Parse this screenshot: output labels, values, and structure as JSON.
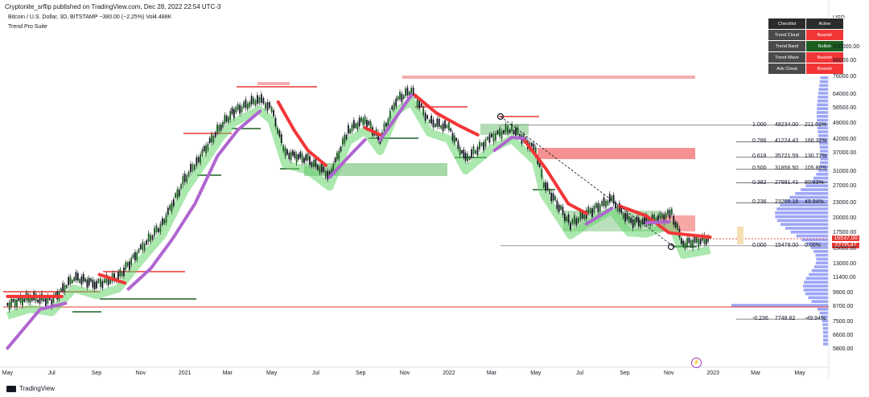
{
  "header": {
    "published": "Cryptonite_srflip published on TradingView.com, Dec 28, 2022 22:54 UTC-3",
    "symbol_line": "Bitcoin / U.S. Dollar, 3D, BITSTAMP  −380.00 (−2.25%)  Vol4.488K",
    "indicator": "Trend Pro Suite"
  },
  "footer": {
    "brand": "TradingView"
  },
  "axis": {
    "currency": "USD"
  },
  "last_price": {
    "value": "16537.00",
    "countdown": "22:05:47"
  },
  "event_marker": "⚡",
  "checklist": {
    "header": [
      "Checklist",
      "Active"
    ],
    "rows": [
      {
        "name": "Trend Cloud",
        "status": "Bearish",
        "color": "#f23636"
      },
      {
        "name": "Trend Band",
        "status": "Bullish",
        "color": "#1b5e20"
      },
      {
        "name": "Trend Wave",
        "status": "Bearish",
        "color": "#f23636"
      },
      {
        "name": "Adx Cloud",
        "status": "Bearish",
        "color": "#f23636"
      }
    ]
  },
  "fib_levels": [
    {
      "ratio": "1.000",
      "price": "48234.00",
      "pct": "211.61%",
      "value": 48234
    },
    {
      "ratio": "0.786",
      "price": "41224.43",
      "pct": "166.32%",
      "value": 41224
    },
    {
      "ratio": "0.618",
      "price": "35721.59",
      "pct": "130.77%",
      "value": 35722
    },
    {
      "ratio": "0.500",
      "price": "31856.50",
      "pct": "105.80%",
      "value": 31857
    },
    {
      "ratio": "0.382",
      "price": "27991.41",
      "pct": "80.83%",
      "value": 27991
    },
    {
      "ratio": "0.236",
      "price": "23209.18",
      "pct": "49.94%",
      "value": 23209
    },
    {
      "ratio": "0.000",
      "price": "15479.00",
      "pct": "0.00%",
      "value": 15479
    },
    {
      "ratio": "-0.236",
      "price": "7748.82",
      "pct": "-49.94%",
      "value": 7749
    }
  ],
  "chart_data": {
    "type": "line",
    "scale": "log",
    "ylim": [
      5000,
      140000
    ],
    "y_ticks": [
      100000,
      88000,
      76000,
      64000,
      56500,
      49000,
      42000,
      37000,
      31000,
      27000,
      23000,
      20000,
      17500,
      15000,
      13000,
      11400,
      9900,
      8700,
      7500,
      6600,
      5800
    ],
    "x_ticks": [
      "May",
      "Jul",
      "Sep",
      "Nov",
      "2021",
      "Mar",
      "May",
      "Jul",
      "Sep",
      "Nov",
      "2022",
      "Mar",
      "May",
      "Jul",
      "Sep",
      "Nov",
      "2023",
      "Mar",
      "May"
    ],
    "x_tick_dates": [
      "2020-05-01",
      "2020-07-01",
      "2020-09-01",
      "2020-11-01",
      "2021-01-01",
      "2021-03-01",
      "2021-05-01",
      "2021-07-01",
      "2021-09-01",
      "2021-11-01",
      "2022-01-01",
      "2022-03-01",
      "2022-05-01",
      "2022-07-01",
      "2022-09-01",
      "2022-11-01",
      "2023-01-01",
      "2023-03-01",
      "2023-05-01"
    ],
    "series": [
      {
        "x": [
          "2020-05-01",
          "2020-06-01",
          "2020-07-01",
          "2020-08-01",
          "2020-09-01",
          "2020-10-01",
          "2020-11-01",
          "2020-12-01",
          "2021-01-01",
          "2021-01-20",
          "2021-02-20",
          "2021-03-10",
          "2021-04-14",
          "2021-05-01",
          "2021-05-20",
          "2021-06-20",
          "2021-07-20",
          "2021-08-15",
          "2021-09-07",
          "2021-09-28",
          "2021-10-20",
          "2021-11-10",
          "2021-12-05",
          "2022-01-01",
          "2022-01-24",
          "2022-03-01",
          "2022-03-29",
          "2022-05-01",
          "2022-05-12",
          "2022-06-18",
          "2022-07-10",
          "2022-08-14",
          "2022-09-07",
          "2022-10-01",
          "2022-11-05",
          "2022-11-21",
          "2022-12-28"
        ],
        "y": [
          8900,
          9500,
          9200,
          11500,
          10800,
          11500,
          15000,
          19000,
          29000,
          35000,
          48000,
          55000,
          62000,
          56000,
          37000,
          35000,
          30000,
          46000,
          51000,
          42000,
          61000,
          67000,
          50000,
          47000,
          35000,
          43000,
          47000,
          38000,
          28000,
          19000,
          21000,
          24000,
          19500,
          19300,
          21000,
          15800,
          16537
        ]
      }
    ],
    "supertrend_red": [
      {
        "x": [
          "2020-05-01",
          "2020-07-15"
        ],
        "y": [
          9600,
          9600
        ]
      },
      {
        "x": [
          "2020-09-05",
          "2020-10-10"
        ],
        "y": [
          11800,
          10900
        ]
      },
      {
        "x": [
          "2021-05-10",
          "2021-06-01",
          "2021-06-20",
          "2021-07-15"
        ],
        "y": [
          60000,
          46000,
          38000,
          33000
        ]
      },
      {
        "x": [
          "2021-09-07",
          "2021-09-28"
        ],
        "y": [
          47000,
          44000
        ]
      },
      {
        "x": [
          "2021-11-15",
          "2021-12-15",
          "2022-01-15",
          "2022-02-10"
        ],
        "y": [
          64000,
          54000,
          48000,
          44000
        ]
      },
      {
        "x": [
          "2022-04-15",
          "2022-05-15",
          "2022-06-15",
          "2022-07-10"
        ],
        "y": [
          42000,
          32000,
          23000,
          21000
        ]
      },
      {
        "x": [
          "2022-08-25",
          "2022-10-01",
          "2022-11-01",
          "2022-12-28"
        ],
        "y": [
          22500,
          20500,
          17500,
          16800
        ]
      }
    ],
    "supertrend_purple": [
      {
        "x": [
          "2020-05-01",
          "2020-06-15",
          "2020-07-20"
        ],
        "y": [
          5900,
          8500,
          9000
        ]
      },
      {
        "x": [
          "2020-10-15",
          "2020-11-15",
          "2020-12-15",
          "2021-01-15",
          "2021-02-15",
          "2021-03-15",
          "2021-04-15"
        ],
        "y": [
          10300,
          12500,
          16500,
          23000,
          36000,
          46000,
          55000
        ]
      },
      {
        "x": [
          "2021-07-20",
          "2021-08-20",
          "2021-09-07"
        ],
        "y": [
          29500,
          37000,
          42000
        ]
      },
      {
        "x": [
          "2021-09-28",
          "2021-10-20",
          "2021-11-10"
        ],
        "y": [
          42000,
          52000,
          64000
        ]
      },
      {
        "x": [
          "2022-03-05",
          "2022-03-29",
          "2022-04-15"
        ],
        "y": [
          38000,
          43000,
          42500
        ]
      },
      {
        "x": [
          "2022-07-10",
          "2022-08-14"
        ],
        "y": [
          19000,
          22000
        ]
      },
      {
        "x": [
          "2022-10-01",
          "2022-11-01"
        ],
        "y": [
          19200,
          19400
        ]
      }
    ]
  }
}
